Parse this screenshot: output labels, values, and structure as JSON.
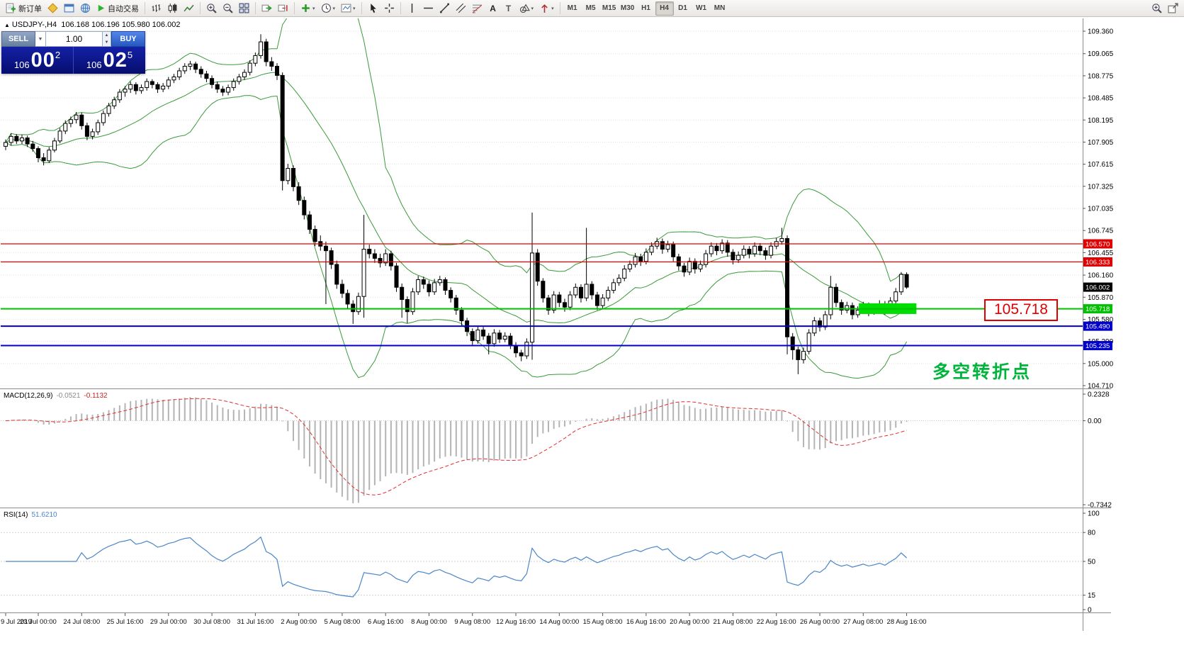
{
  "toolbar": {
    "new_order": "新订单",
    "autotrading": "自动交易",
    "timeframes": [
      "M1",
      "M5",
      "M15",
      "M30",
      "H1",
      "H4",
      "D1",
      "W1",
      "MN"
    ],
    "active_timeframe": "H4"
  },
  "chart": {
    "symbol_label": "USDJPY-,H4",
    "ohlc": "106.168 106.196 105.980 106.002",
    "current_price_label": "106.002",
    "callout_text": "105.718",
    "annotation_text": "多空转折点",
    "trade_panel": {
      "sell_label": "SELL",
      "buy_label": "BUY",
      "volume": "1.00",
      "sell_small": "106",
      "sell_big": "00",
      "sell_sup": "2",
      "buy_small": "106",
      "buy_big": "02",
      "buy_sup": "5"
    }
  },
  "macd": {
    "label": "MACD(12,26,9)",
    "value1": "-0.0521",
    "value2": "-0.1132",
    "scale": [
      "0.2328",
      "0.00",
      "-0.7342"
    ]
  },
  "rsi": {
    "label": "RSI(14)",
    "value": "51.6210",
    "period": 14,
    "levels": [
      80,
      50,
      15
    ],
    "scale": [
      "100",
      "80",
      "50",
      "15",
      "0"
    ]
  },
  "chart_data": {
    "type": "candlestick",
    "symbol": "USDJPY",
    "timeframe": "H4",
    "title": "USDJPY-,H4",
    "last_ohlc": {
      "open": 106.168,
      "high": 106.196,
      "low": 105.98,
      "close": 106.002
    },
    "current_price": 106.002,
    "y_axis_ticks": [
      109.36,
      109.065,
      108.775,
      108.485,
      108.195,
      107.905,
      107.615,
      107.325,
      107.035,
      106.745,
      106.455,
      106.16,
      105.87,
      105.58,
      105.29,
      105.0,
      104.71
    ],
    "x_axis_labels": [
      {
        "bar": 0,
        "text": "9 Jul 2019"
      },
      {
        "bar": 6,
        "text": "23 Jul 00:00"
      },
      {
        "bar": 14,
        "text": "24 Jul 08:00"
      },
      {
        "bar": 22,
        "text": "25 Jul 16:00"
      },
      {
        "bar": 30,
        "text": "29 Jul 00:00"
      },
      {
        "bar": 38,
        "text": "30 Jul 08:00"
      },
      {
        "bar": 46,
        "text": "31 Jul 16:00"
      },
      {
        "bar": 54,
        "text": "2 Aug 00:00"
      },
      {
        "bar": 62,
        "text": "5 Aug 08:00"
      },
      {
        "bar": 70,
        "text": "6 Aug 16:00"
      },
      {
        "bar": 78,
        "text": "8 Aug 00:00"
      },
      {
        "bar": 86,
        "text": "9 Aug 08:00"
      },
      {
        "bar": 94,
        "text": "12 Aug 16:00"
      },
      {
        "bar": 102,
        "text": "14 Aug 00:00"
      },
      {
        "bar": 110,
        "text": "15 Aug 08:00"
      },
      {
        "bar": 118,
        "text": "16 Aug 16:00"
      },
      {
        "bar": 126,
        "text": "20 Aug 00:00"
      },
      {
        "bar": 134,
        "text": "21 Aug 08:00"
      },
      {
        "bar": 142,
        "text": "22 Aug 16:00"
      },
      {
        "bar": 150,
        "text": "26 Aug 00:00"
      },
      {
        "bar": 158,
        "text": "27 Aug 08:00"
      },
      {
        "bar": 166,
        "text": "28 Aug 16:00"
      }
    ],
    "levels": [
      {
        "price": 106.57,
        "label": "106.570",
        "color": "#e00000",
        "width": 1.3
      },
      {
        "price": 106.333,
        "label": "106.333",
        "color": "#e00000",
        "width": 1.3
      },
      {
        "price": 105.718,
        "label": "105.718",
        "color": "#00c000",
        "width": 2
      },
      {
        "price": 105.49,
        "label": "105.490",
        "color": "#0000cc",
        "width": 2
      },
      {
        "price": 105.235,
        "label": "105.235",
        "color": "#0000cc",
        "width": 2
      }
    ],
    "bollinger": {
      "period": 20,
      "deviation": 2,
      "color": "#3a9a3a"
    },
    "highlight_rect": {
      "bar_start": 157.2,
      "bar_end": 167.8,
      "price_top": 105.79,
      "price_bottom": 105.65,
      "color": "#00dd00"
    },
    "candles": [
      [
        107.85,
        107.94,
        107.8,
        107.9
      ],
      [
        107.9,
        108.02,
        107.86,
        107.98
      ],
      [
        107.98,
        108.01,
        107.88,
        107.92
      ],
      [
        107.92,
        108.0,
        107.88,
        107.96
      ],
      [
        107.96,
        107.99,
        107.84,
        107.88
      ],
      [
        107.88,
        107.92,
        107.78,
        107.82
      ],
      [
        107.82,
        107.85,
        107.64,
        107.7
      ],
      [
        107.7,
        107.76,
        107.6,
        107.66
      ],
      [
        107.66,
        107.84,
        107.63,
        107.8
      ],
      [
        107.8,
        107.96,
        107.77,
        107.92
      ],
      [
        107.92,
        108.09,
        107.89,
        108.05
      ],
      [
        108.05,
        108.19,
        108.01,
        108.15
      ],
      [
        108.15,
        108.24,
        108.1,
        108.2
      ],
      [
        108.2,
        108.3,
        108.15,
        108.26
      ],
      [
        108.26,
        108.29,
        108.07,
        108.12
      ],
      [
        108.12,
        108.16,
        107.93,
        107.98
      ],
      [
        107.98,
        108.08,
        107.94,
        108.04
      ],
      [
        108.04,
        108.2,
        108.0,
        108.16
      ],
      [
        108.16,
        108.32,
        108.12,
        108.28
      ],
      [
        108.28,
        108.42,
        108.24,
        108.38
      ],
      [
        108.38,
        108.5,
        108.34,
        108.46
      ],
      [
        108.46,
        108.6,
        108.42,
        108.56
      ],
      [
        108.56,
        108.64,
        108.5,
        108.6
      ],
      [
        108.6,
        108.7,
        108.55,
        108.66
      ],
      [
        108.66,
        108.69,
        108.53,
        108.58
      ],
      [
        108.58,
        108.66,
        108.54,
        108.62
      ],
      [
        108.62,
        108.74,
        108.58,
        108.7
      ],
      [
        108.7,
        108.73,
        108.61,
        108.66
      ],
      [
        108.66,
        108.69,
        108.55,
        108.6
      ],
      [
        108.6,
        108.68,
        108.56,
        108.64
      ],
      [
        108.64,
        108.76,
        108.6,
        108.72
      ],
      [
        108.72,
        108.8,
        108.68,
        108.76
      ],
      [
        108.76,
        108.88,
        108.72,
        108.84
      ],
      [
        108.84,
        108.94,
        108.8,
        108.9
      ],
      [
        108.9,
        108.97,
        108.85,
        108.93
      ],
      [
        108.93,
        108.96,
        108.81,
        108.86
      ],
      [
        108.86,
        108.9,
        108.75,
        108.8
      ],
      [
        108.8,
        108.84,
        108.69,
        108.74
      ],
      [
        108.74,
        108.78,
        108.61,
        108.66
      ],
      [
        108.66,
        108.7,
        108.55,
        108.6
      ],
      [
        108.6,
        108.64,
        108.51,
        108.56
      ],
      [
        108.56,
        108.66,
        108.52,
        108.62
      ],
      [
        108.62,
        108.74,
        108.58,
        108.7
      ],
      [
        108.7,
        108.8,
        108.66,
        108.76
      ],
      [
        108.76,
        108.86,
        108.72,
        108.82
      ],
      [
        108.82,
        108.98,
        108.78,
        108.94
      ],
      [
        108.94,
        109.08,
        108.9,
        109.04
      ],
      [
        109.04,
        109.32,
        109.0,
        109.22
      ],
      [
        109.22,
        109.26,
        108.9,
        108.96
      ],
      [
        108.96,
        109.02,
        108.84,
        108.9
      ],
      [
        108.9,
        108.94,
        108.72,
        108.78
      ],
      [
        108.78,
        108.82,
        107.27,
        107.4
      ],
      [
        107.4,
        107.62,
        107.35,
        107.56
      ],
      [
        107.56,
        107.6,
        107.26,
        107.32
      ],
      [
        107.32,
        107.38,
        107.08,
        107.14
      ],
      [
        107.14,
        107.19,
        106.89,
        106.95
      ],
      [
        106.95,
        107.0,
        106.7,
        106.76
      ],
      [
        106.76,
        106.81,
        106.54,
        106.6
      ],
      [
        106.6,
        106.68,
        106.48,
        106.54
      ],
      [
        106.54,
        106.6,
        105.78,
        106.48
      ],
      [
        106.48,
        106.52,
        106.24,
        106.3
      ],
      [
        106.3,
        106.35,
        105.98,
        106.04
      ],
      [
        106.04,
        106.1,
        105.86,
        105.92
      ],
      [
        105.92,
        105.97,
        105.72,
        105.78
      ],
      [
        105.78,
        105.83,
        105.52,
        105.68
      ],
      [
        105.68,
        105.93,
        105.64,
        105.88
      ],
      [
        105.88,
        106.95,
        105.6,
        106.5
      ],
      [
        106.5,
        106.56,
        106.38,
        106.44
      ],
      [
        106.44,
        106.5,
        106.32,
        106.38
      ],
      [
        106.38,
        106.44,
        106.26,
        106.32
      ],
      [
        106.32,
        106.5,
        106.28,
        106.44
      ],
      [
        106.44,
        106.48,
        106.22,
        106.28
      ],
      [
        106.28,
        106.32,
        105.94,
        106.0
      ],
      [
        106.0,
        106.05,
        105.6,
        105.84
      ],
      [
        105.84,
        105.88,
        105.53,
        105.68
      ],
      [
        105.68,
        105.99,
        105.64,
        105.94
      ],
      [
        105.94,
        106.15,
        105.9,
        106.1
      ],
      [
        106.1,
        106.14,
        105.98,
        106.04
      ],
      [
        106.04,
        106.09,
        105.88,
        105.94
      ],
      [
        105.94,
        106.11,
        105.9,
        106.06
      ],
      [
        106.06,
        106.15,
        106.02,
        106.1
      ],
      [
        106.1,
        106.13,
        105.9,
        105.96
      ],
      [
        105.96,
        106.0,
        105.8,
        105.86
      ],
      [
        105.86,
        105.9,
        105.64,
        105.7
      ],
      [
        105.7,
        105.74,
        105.5,
        105.56
      ],
      [
        105.56,
        105.6,
        105.36,
        105.42
      ],
      [
        105.42,
        105.46,
        105.24,
        105.3
      ],
      [
        105.3,
        105.49,
        105.26,
        105.44
      ],
      [
        105.44,
        105.48,
        105.31,
        105.36
      ],
      [
        105.36,
        105.4,
        105.12,
        105.26
      ],
      [
        105.26,
        105.45,
        105.22,
        105.4
      ],
      [
        105.4,
        105.44,
        105.27,
        105.32
      ],
      [
        105.32,
        105.41,
        105.28,
        105.36
      ],
      [
        105.36,
        105.4,
        105.19,
        105.24
      ],
      [
        105.24,
        105.28,
        105.08,
        105.14
      ],
      [
        105.14,
        105.18,
        105.03,
        105.1
      ],
      [
        105.1,
        105.33,
        105.06,
        105.28
      ],
      [
        105.28,
        106.98,
        105.05,
        106.45
      ],
      [
        106.45,
        106.5,
        106.02,
        106.08
      ],
      [
        106.08,
        106.12,
        105.8,
        105.86
      ],
      [
        105.86,
        105.9,
        105.64,
        105.7
      ],
      [
        105.7,
        105.95,
        105.66,
        105.9
      ],
      [
        105.9,
        105.94,
        105.74,
        105.8
      ],
      [
        105.8,
        105.85,
        105.68,
        105.74
      ],
      [
        105.74,
        105.95,
        105.7,
        105.9
      ],
      [
        105.9,
        106.05,
        105.86,
        106.0
      ],
      [
        106.0,
        106.04,
        105.8,
        105.86
      ],
      [
        105.86,
        106.78,
        105.82,
        106.04
      ],
      [
        106.04,
        106.08,
        105.84,
        105.9
      ],
      [
        105.9,
        105.94,
        105.7,
        105.76
      ],
      [
        105.76,
        105.91,
        105.72,
        105.86
      ],
      [
        105.86,
        106.01,
        105.82,
        105.96
      ],
      [
        105.96,
        106.11,
        105.92,
        106.06
      ],
      [
        106.06,
        106.17,
        106.02,
        106.12
      ],
      [
        106.12,
        106.29,
        106.08,
        106.24
      ],
      [
        106.24,
        106.35,
        106.2,
        106.3
      ],
      [
        106.3,
        106.45,
        106.26,
        106.4
      ],
      [
        106.4,
        106.44,
        106.28,
        106.34
      ],
      [
        106.34,
        106.51,
        106.3,
        106.46
      ],
      [
        106.46,
        106.59,
        106.42,
        106.54
      ],
      [
        106.54,
        106.65,
        106.5,
        106.6
      ],
      [
        106.6,
        106.64,
        106.44,
        106.5
      ],
      [
        106.5,
        106.61,
        106.46,
        106.56
      ],
      [
        106.56,
        106.6,
        106.34,
        106.4
      ],
      [
        106.4,
        106.44,
        106.22,
        106.28
      ],
      [
        106.28,
        106.32,
        106.14,
        106.2
      ],
      [
        106.2,
        106.39,
        106.16,
        106.34
      ],
      [
        106.34,
        106.38,
        106.18,
        106.24
      ],
      [
        106.24,
        106.35,
        106.2,
        106.3
      ],
      [
        106.3,
        106.49,
        106.26,
        106.44
      ],
      [
        106.44,
        106.59,
        106.4,
        106.54
      ],
      [
        106.54,
        106.58,
        106.42,
        106.48
      ],
      [
        106.48,
        106.63,
        106.44,
        106.58
      ],
      [
        106.58,
        106.62,
        106.4,
        106.46
      ],
      [
        106.46,
        106.5,
        106.3,
        106.36
      ],
      [
        106.36,
        106.47,
        106.32,
        106.42
      ],
      [
        106.42,
        106.55,
        106.38,
        106.5
      ],
      [
        106.5,
        106.54,
        106.38,
        106.44
      ],
      [
        106.44,
        106.59,
        106.4,
        106.54
      ],
      [
        106.54,
        106.58,
        106.42,
        106.48
      ],
      [
        106.48,
        106.52,
        106.36,
        106.42
      ],
      [
        106.42,
        106.59,
        106.38,
        106.54
      ],
      [
        106.54,
        106.65,
        106.5,
        106.6
      ],
      [
        106.6,
        106.78,
        106.56,
        106.64
      ],
      [
        106.64,
        106.68,
        105.12,
        105.35
      ],
      [
        105.35,
        105.4,
        105.05,
        105.18
      ],
      [
        105.18,
        105.22,
        104.86,
        105.05
      ],
      [
        105.05,
        105.21,
        105.0,
        105.16
      ],
      [
        105.16,
        105.45,
        105.12,
        105.4
      ],
      [
        105.4,
        105.61,
        105.36,
        105.56
      ],
      [
        105.56,
        105.6,
        105.42,
        105.48
      ],
      [
        105.48,
        105.69,
        105.44,
        105.64
      ],
      [
        105.64,
        106.15,
        105.58,
        106.0
      ],
      [
        106.0,
        106.05,
        105.74,
        105.8
      ],
      [
        105.8,
        105.84,
        105.64,
        105.7
      ],
      [
        105.7,
        105.81,
        105.66,
        105.76
      ],
      [
        105.76,
        105.8,
        105.58,
        105.64
      ],
      [
        105.64,
        105.75,
        105.6,
        105.7
      ],
      [
        105.7,
        105.81,
        105.66,
        105.76
      ],
      [
        105.76,
        105.8,
        105.62,
        105.68
      ],
      [
        105.68,
        105.77,
        105.64,
        105.72
      ],
      [
        105.72,
        105.83,
        105.68,
        105.78
      ],
      [
        105.78,
        105.82,
        105.64,
        105.7
      ],
      [
        105.7,
        105.87,
        105.66,
        105.82
      ],
      [
        105.82,
        105.99,
        105.78,
        105.94
      ],
      [
        105.94,
        106.2,
        105.9,
        106.17
      ],
      [
        106.168,
        106.196,
        105.98,
        106.002
      ]
    ]
  }
}
